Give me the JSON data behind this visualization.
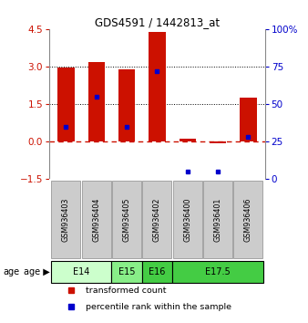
{
  "title": "GDS4591 / 1442813_at",
  "samples": [
    "GSM936403",
    "GSM936404",
    "GSM936405",
    "GSM936402",
    "GSM936400",
    "GSM936401",
    "GSM936406"
  ],
  "transformed_count": [
    2.95,
    3.2,
    2.9,
    4.4,
    0.12,
    -0.05,
    1.75
  ],
  "percentile_rank": [
    35,
    55,
    35,
    72,
    5,
    5,
    28
  ],
  "age_groups": [
    {
      "label": "E14",
      "start": 0,
      "end": 2,
      "color": "#ccffcc"
    },
    {
      "label": "E15",
      "start": 2,
      "end": 3,
      "color": "#88ee88"
    },
    {
      "label": "E16",
      "start": 3,
      "end": 4,
      "color": "#44cc44"
    },
    {
      "label": "E17.5",
      "start": 4,
      "end": 7,
      "color": "#44cc44"
    }
  ],
  "ylim_left": [
    -1.5,
    4.5
  ],
  "ylim_right": [
    0,
    100
  ],
  "yticks_left": [
    -1.5,
    0,
    1.5,
    3,
    4.5
  ],
  "yticks_right": [
    0,
    25,
    50,
    75,
    100
  ],
  "bar_color": "#cc1100",
  "dot_color": "#0000cc",
  "zero_line_color": "#cc1100",
  "grid_color": "black",
  "background_color": "#ffffff",
  "label_bg_color": "#cccccc",
  "label_edge_color": "#999999"
}
